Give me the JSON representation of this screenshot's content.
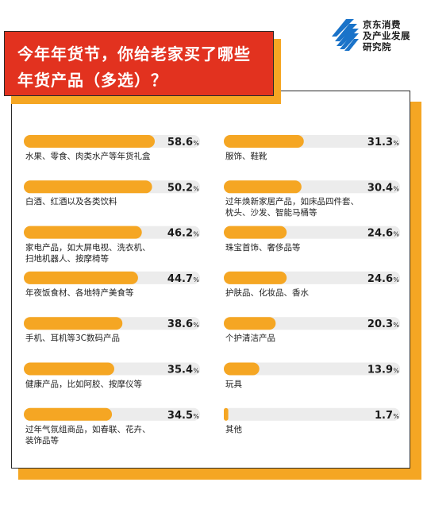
{
  "header": {
    "title_line1": "今年年货节，你给老家买了哪些",
    "title_line2": "年货产品（多选）？"
  },
  "logo": {
    "line1": "京东消费",
    "line2": "及产业发展",
    "line3": "研究院",
    "icon": "striped-stairs-logo-icon"
  },
  "colors": {
    "bar_fill": "#f5a623",
    "bar_track": "#ececec",
    "title_bg": "#e2321f",
    "shadow": "#f5a623"
  },
  "chart_data": {
    "type": "bar",
    "title": "今年年货节，你给老家买了哪些年货产品（多选）？",
    "unit": "%",
    "xlim": [
      0,
      100
    ],
    "columns": 2,
    "series": [
      {
        "values": [
          58.6,
          50.2,
          46.2,
          44.7,
          38.6,
          35.4,
          34.5,
          31.3,
          30.4,
          24.6,
          24.6,
          20.3,
          13.9,
          1.7
        ]
      }
    ],
    "categories": [
      "水果、零食、肉类水产等年货礼盒",
      "白酒、红酒以及各类饮料",
      "家电产品，如大屏电视、洗衣机、扫地机器人、按摩椅等",
      "年夜饭食材、各地特产美食等",
      "手机、耳机等3C数码产品",
      "健康产品，比如阿胶、按摩仪等",
      "过年气氛组商品，如春联、花卉、装饰品等",
      "服饰、鞋靴",
      "过年焕新家居产品，如床品四件套、枕头、沙发、智能马桶等",
      "珠宝首饰、奢侈品等",
      "护肤品、化妆品、香水",
      "个护清洁产品",
      "玩具",
      "其他"
    ],
    "items": [
      {
        "value": "58.6",
        "label_lines": [
          "水果、零食、肉类水产等年货礼盒"
        ]
      },
      {
        "value": "50.2",
        "label_lines": [
          "白酒、红酒以及各类饮料"
        ]
      },
      {
        "value": "46.2",
        "label_lines": [
          "家电产品，如大屏电视、洗衣机、",
          "扫地机器人、按摩椅等"
        ]
      },
      {
        "value": "44.7",
        "label_lines": [
          "年夜饭食材、各地特产美食等"
        ]
      },
      {
        "value": "38.6",
        "label_lines": [
          "手机、耳机等3C数码产品"
        ]
      },
      {
        "value": "35.4",
        "label_lines": [
          "健康产品，比如阿胶、按摩仪等"
        ]
      },
      {
        "value": "34.5",
        "label_lines": [
          "过年气氛组商品，如春联、花卉、",
          "装饰品等"
        ]
      },
      {
        "value": "31.3",
        "label_lines": [
          "服饰、鞋靴"
        ]
      },
      {
        "value": "30.4",
        "label_lines": [
          "过年焕新家居产品，如床品四件套、",
          "枕头、沙发、智能马桶等"
        ]
      },
      {
        "value": "24.6",
        "label_lines": [
          "珠宝首饰、奢侈品等"
        ]
      },
      {
        "value": "24.6",
        "label_lines": [
          "护肤品、化妆品、香水"
        ]
      },
      {
        "value": "20.3",
        "label_lines": [
          "个护清洁产品"
        ]
      },
      {
        "value": "13.9",
        "label_lines": [
          "玩具"
        ]
      },
      {
        "value": "1.7",
        "label_lines": [
          "其他"
        ]
      }
    ]
  }
}
